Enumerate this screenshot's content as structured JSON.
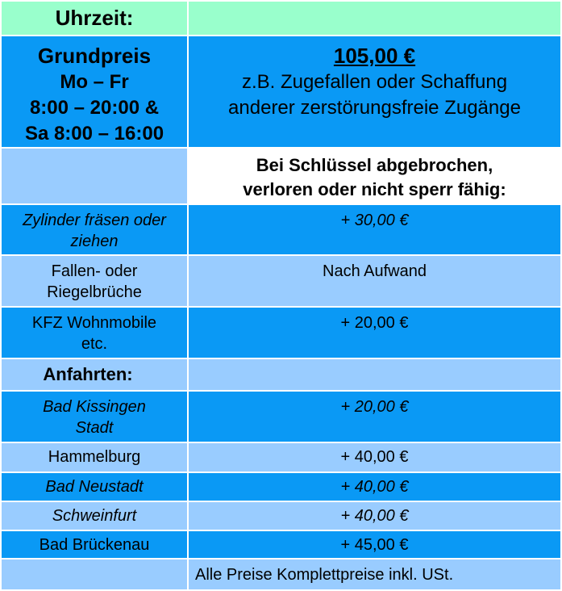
{
  "header": {
    "label": "Uhrzeit:"
  },
  "base": {
    "title": "Grundpreis",
    "days": "Mo – Fr",
    "hours_weekday": "8:00 – 20:00 &",
    "hours_saturday": "Sa 8:00 – 16:00",
    "price": "105,00 €",
    "desc_line1": "z.B. Zugefallen oder Schaffung",
    "desc_line2": "anderer zerstörungsfreie Zugänge"
  },
  "section_key": {
    "line1": "Bei Schlüssel abgebrochen,",
    "line2": "verloren oder nicht sperr fähig:"
  },
  "services": [
    {
      "label": "Zylinder fräsen oder ziehen",
      "price": "+ 30,00 €"
    },
    {
      "label": "Fallen- oder Riegelbrüche",
      "price": "Nach Aufwand"
    },
    {
      "label": "KFZ Wohnmobile etc.",
      "price": "+ 20,00 €"
    }
  ],
  "travel_heading": "Anfahrten:",
  "travel": [
    {
      "label": "Bad Kissingen Stadt",
      "price": "+ 20,00 €"
    },
    {
      "label": "Hammelburg",
      "price": "+ 40,00 €"
    },
    {
      "label": "Bad Neustadt",
      "price": "+ 40,00 €"
    },
    {
      "label": "Schweinfurt",
      "price": "+ 40,00 €"
    },
    {
      "label": "Bad Brückenau",
      "price": "+ 45,00 €"
    }
  ],
  "footer_note": "Alle Preise Komplettpreise inkl. USt.",
  "colors": {
    "green": "#99ffcc",
    "blue": "#0a99f5",
    "light_blue": "#99ccff"
  }
}
